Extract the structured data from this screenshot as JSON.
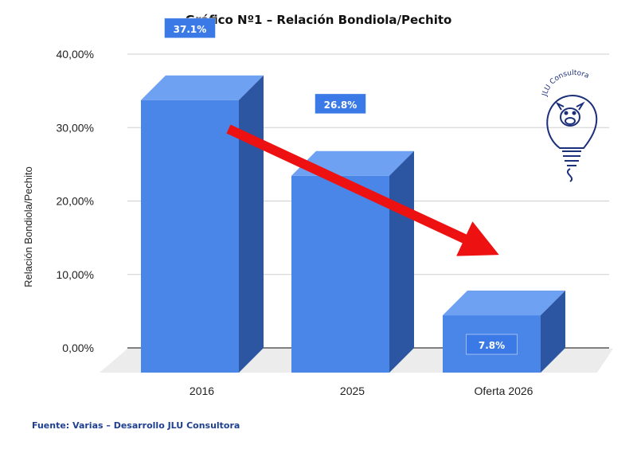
{
  "chart_data": {
    "type": "bar",
    "title": "Gráfico Nº1 – Relación Bondiola/Pechito",
    "xlabel": "",
    "ylabel": "Relación Bondiola/Pechito",
    "ylim": [
      0,
      40
    ],
    "yticks": [
      "0,00%",
      "10,00%",
      "20,00%",
      "30,00%",
      "40,00%"
    ],
    "ytick_values": [
      0,
      10,
      20,
      30,
      40
    ],
    "categories": [
      "2016",
      "2025",
      "Oferta 2026"
    ],
    "values": [
      37.1,
      26.8,
      7.8
    ],
    "data_labels": [
      "37.1%",
      "26.8%",
      "7.8%"
    ],
    "bar_color": "#4a86e8",
    "annotations": [
      "downward trend arrow"
    ],
    "grid": true,
    "legend": "none"
  },
  "source": "Fuente: Varias – Desarrollo JLU Consultora",
  "logo": {
    "text": "JLU Consultora",
    "icon": "pig-lightbulb-icon"
  },
  "colors": {
    "accent_arrow": "#ee1111",
    "source_text": "#1f3f8f"
  }
}
